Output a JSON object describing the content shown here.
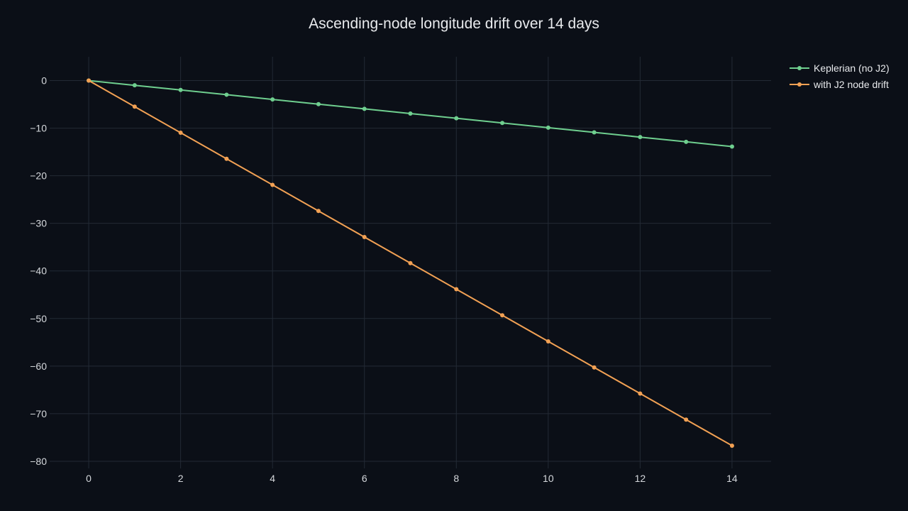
{
  "chart_data": {
    "type": "line",
    "title": "Ascending-node longitude drift over 14 days",
    "xlabel": "",
    "ylabel": "",
    "x": [
      0,
      1,
      2,
      3,
      4,
      5,
      6,
      7,
      8,
      9,
      10,
      11,
      12,
      13,
      14
    ],
    "xlim": [
      -0.85,
      14.85
    ],
    "ylim": [
      -81.5,
      5
    ],
    "x_ticks": [
      0,
      2,
      4,
      6,
      8,
      10,
      12,
      14
    ],
    "y_ticks": [
      0,
      -10,
      -20,
      -30,
      -40,
      -50,
      -60,
      -70,
      -80
    ],
    "x_tick_labels": [
      "0",
      "2",
      "4",
      "6",
      "8",
      "10",
      "12",
      "14"
    ],
    "y_tick_labels": [
      "0",
      "−10",
      "−20",
      "−30",
      "−40",
      "−50",
      "−60",
      "−70",
      "−80"
    ],
    "grid": true,
    "legend_position": "top-right",
    "series": [
      {
        "name": "Keplerian (no J2)",
        "color": "#6fcf8f",
        "values": [
          0,
          -0.99,
          -1.98,
          -2.97,
          -3.96,
          -4.95,
          -5.94,
          -6.93,
          -7.92,
          -8.91,
          -9.9,
          -10.89,
          -11.88,
          -12.87,
          -13.86
        ]
      },
      {
        "name": "with J2 node drift",
        "color": "#f2a154",
        "values": [
          0,
          -5.48,
          -10.96,
          -16.44,
          -21.92,
          -27.4,
          -32.88,
          -38.36,
          -43.84,
          -49.32,
          -54.8,
          -60.28,
          -65.76,
          -71.24,
          -76.72
        ]
      }
    ]
  }
}
